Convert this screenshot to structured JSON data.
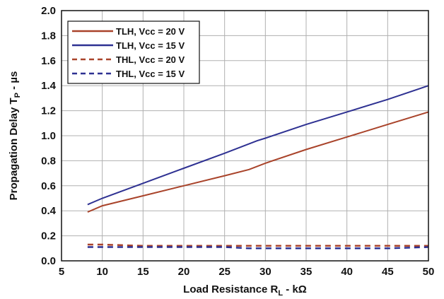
{
  "chart_data": {
    "type": "line",
    "title": "",
    "xlabel": "Load Resistance R_L - kΩ",
    "xlabel_parts": {
      "main": "Load Resistance R",
      "sub": "L",
      "rest": " - kΩ"
    },
    "ylabel": "Propagation Delay Tp - µs",
    "ylabel_parts": {
      "main": "Propagation Delay T",
      "sub": "P",
      "rest": " - µs"
    },
    "xlim": [
      5,
      50
    ],
    "ylim": [
      0.0,
      2.0
    ],
    "xticks": [
      5,
      10,
      15,
      20,
      25,
      30,
      35,
      40,
      45,
      50
    ],
    "yticks": [
      0.0,
      0.2,
      0.4,
      0.6,
      0.8,
      1.0,
      1.2,
      1.4,
      1.6,
      1.8,
      2.0
    ],
    "ytick_labels": [
      "0.0",
      "0.2",
      "0.4",
      "0.6",
      "0.8",
      "1.0",
      "1.2",
      "1.4",
      "1.6",
      "1.8",
      "2.0"
    ],
    "grid": true,
    "legend_position": "top-left",
    "series": [
      {
        "name": "TLH, Vcc = 20 V",
        "color": "#a9432a",
        "dash": "solid",
        "x": [
          8.2,
          10,
          15,
          20,
          25,
          28,
          30,
          35,
          40,
          45,
          50
        ],
        "y": [
          0.39,
          0.44,
          0.52,
          0.6,
          0.68,
          0.73,
          0.78,
          0.89,
          0.99,
          1.09,
          1.19
        ]
      },
      {
        "name": "TLH, Vcc = 15 V",
        "color": "#2e3192",
        "dash": "solid",
        "x": [
          8.2,
          10,
          15,
          20,
          25,
          29,
          30,
          35,
          40,
          45,
          50
        ],
        "y": [
          0.45,
          0.5,
          0.62,
          0.74,
          0.86,
          0.96,
          0.98,
          1.09,
          1.19,
          1.29,
          1.4
        ]
      },
      {
        "name": "THL, Vcc = 20 V",
        "color": "#a9432a",
        "dash": "dashed",
        "x": [
          8.2,
          10,
          15,
          20,
          25,
          30,
          35,
          40,
          45,
          50
        ],
        "y": [
          0.13,
          0.13,
          0.12,
          0.12,
          0.12,
          0.12,
          0.12,
          0.12,
          0.12,
          0.12
        ]
      },
      {
        "name": "THL, Vcc = 15 V",
        "color": "#2e3192",
        "dash": "dashed",
        "x": [
          8.2,
          10,
          15,
          20,
          25,
          28,
          30,
          35,
          40,
          45,
          50
        ],
        "y": [
          0.11,
          0.11,
          0.11,
          0.11,
          0.11,
          0.1,
          0.1,
          0.1,
          0.1,
          0.1,
          0.11
        ]
      }
    ]
  }
}
